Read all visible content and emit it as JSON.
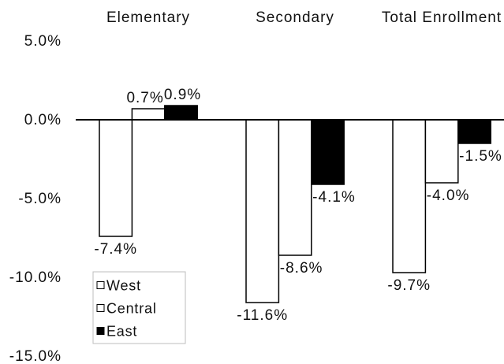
{
  "chart_data": {
    "type": "bar",
    "categories": [
      "Elementary",
      "Secondary",
      "Total Enrollment"
    ],
    "series": [
      {
        "name": "West",
        "values": [
          -7.4,
          -11.6,
          -9.7
        ],
        "labels": [
          "-7.4%",
          "-11.6%",
          "-9.7%"
        ],
        "color": "#ffffff"
      },
      {
        "name": "Central",
        "values": [
          0.7,
          -8.6,
          -4.0
        ],
        "labels": [
          "0.7%",
          "-8.6%",
          "-4.0%"
        ],
        "color": "#ffffff"
      },
      {
        "name": "East",
        "values": [
          0.9,
          -4.1,
          -1.5
        ],
        "labels": [
          "0.9%",
          "-4.1%",
          "-1.5%"
        ],
        "color": "#000000"
      }
    ],
    "ylim": [
      -15,
      5
    ],
    "yticks": [
      5,
      0,
      -5,
      -10,
      -15
    ],
    "ytick_labels": [
      "5.0%",
      "0.0%",
      "-5.0%",
      "-10.0%",
      "-15.0%"
    ],
    "grid": false,
    "legend_position": "bottom-left",
    "bar_outline_color": "#000000",
    "axis_color": "#000000",
    "legend_border_color": "#bdbdbd"
  }
}
